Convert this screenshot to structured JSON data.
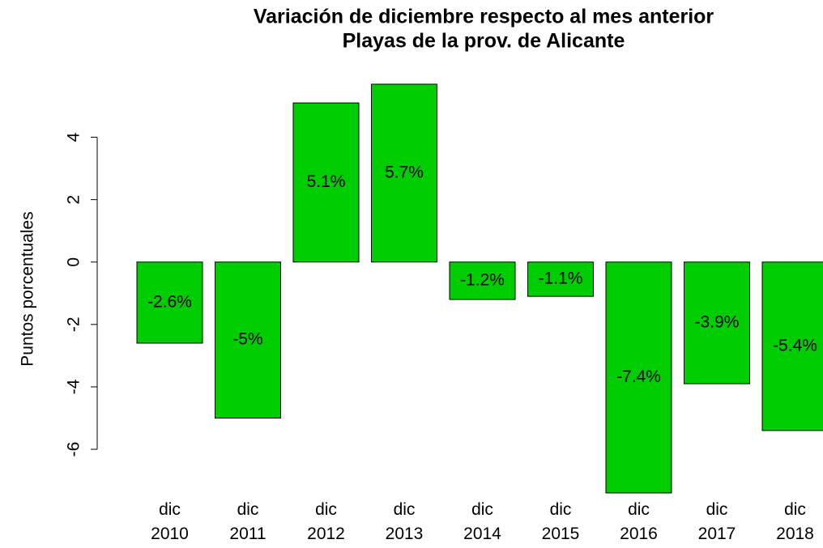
{
  "chart_data": {
    "type": "bar",
    "title": "Variación de diciembre respecto al mes anterior",
    "subtitle": "Playas de la prov. de Alicante",
    "y_label": "Puntos porcentuales",
    "categories": [
      "dic 2010",
      "dic 2011",
      "dic 2012",
      "dic 2013",
      "dic 2014",
      "dic 2015",
      "dic 2016",
      "dic 2017",
      "dic 2018"
    ],
    "values": [
      -2.6,
      -5,
      5.1,
      5.7,
      -1.2,
      -1.1,
      -7.4,
      -3.9,
      -5.4
    ],
    "value_labels": [
      "-2.6%",
      "-5%",
      "5.1%",
      "5.7%",
      "-1.2%",
      "-1.1%",
      "-7.4%",
      "-3.9%",
      "-5.4%"
    ],
    "color": "#00cd00",
    "ylim": [
      -7.4,
      5.7
    ],
    "yticks": [
      -6,
      -4,
      -2,
      0,
      2,
      4
    ]
  }
}
